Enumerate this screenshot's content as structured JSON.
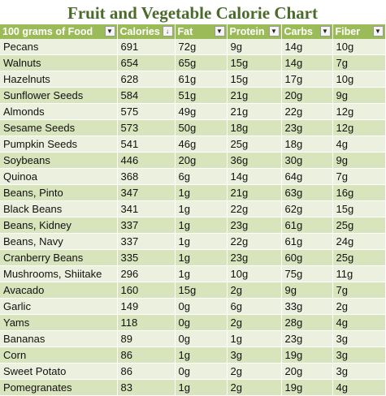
{
  "title": "Fruit and Vegetable Calorie Chart",
  "table": {
    "headers": [
      "100 grams of Food",
      "Calories",
      "Fat",
      "Protein",
      "Carbs",
      "Fiber"
    ],
    "sort_column": "Calories",
    "sort_indicator_icon": "sort-descending-filter-icon",
    "filter_icon": "dropdown-filter-icon",
    "rows": [
      [
        "Pecans",
        "691",
        "72g",
        "9g",
        "14g",
        "10g"
      ],
      [
        "Walnuts",
        "654",
        "65g",
        "15g",
        "14g",
        "7g"
      ],
      [
        "Hazelnuts",
        "628",
        "61g",
        "15g",
        "17g",
        "10g"
      ],
      [
        "Sunflower Seeds",
        "584",
        "51g",
        "21g",
        "20g",
        "9g"
      ],
      [
        "Almonds",
        "575",
        "49g",
        "21g",
        "22g",
        "12g"
      ],
      [
        "Sesame Seeds",
        "573",
        "50g",
        "18g",
        "23g",
        "12g"
      ],
      [
        "Pumpkin Seeds",
        "541",
        "46g",
        "25g",
        "18g",
        "4g"
      ],
      [
        "Soybeans",
        "446",
        "20g",
        "36g",
        "30g",
        "9g"
      ],
      [
        "Quinoa",
        "368",
        "6g",
        "14g",
        "64g",
        "7g"
      ],
      [
        "Beans, Pinto",
        "347",
        "1g",
        "21g",
        "63g",
        "16g"
      ],
      [
        "Black Beans",
        "341",
        "1g",
        "22g",
        "62g",
        "15g"
      ],
      [
        "Beans, Kidney",
        "337",
        "1g",
        "23g",
        "61g",
        "25g"
      ],
      [
        "Beans, Navy",
        "337",
        "1g",
        "22g",
        "61g",
        "24g"
      ],
      [
        "Cranberry Beans",
        "335",
        "1g",
        "23g",
        "60g",
        "25g"
      ],
      [
        "Mushrooms, Shiitake",
        "296",
        "1g",
        "10g",
        "75g",
        "11g"
      ],
      [
        "Avacado",
        "160",
        "15g",
        "2g",
        "9g",
        "7g"
      ],
      [
        "Garlic",
        "149",
        "0g",
        "6g",
        "33g",
        "2g"
      ],
      [
        "Yams",
        "118",
        "0g",
        "2g",
        "28g",
        "4g"
      ],
      [
        "Bananas",
        "89",
        "0g",
        "1g",
        "23g",
        "3g"
      ],
      [
        "Corn",
        "86",
        "1g",
        "3g",
        "19g",
        "3g"
      ],
      [
        "Sweet Potato",
        "86",
        "0g",
        "2g",
        "20g",
        "3g"
      ],
      [
        "Pomegranates",
        "83",
        "1g",
        "2g",
        "19g",
        "4g"
      ]
    ]
  }
}
